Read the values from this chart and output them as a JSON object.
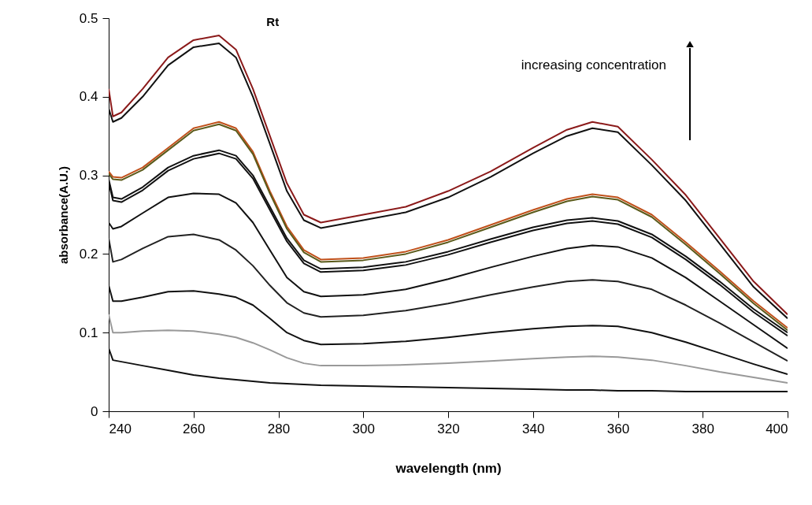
{
  "chart_data": {
    "type": "line",
    "title": "Rt",
    "xlabel": "wavelength (nm)",
    "ylabel": "absorbance(A.U.)",
    "annotations": [
      "increasing concentration"
    ],
    "x": [
      240,
      241,
      243,
      248,
      254,
      260,
      266,
      270,
      274,
      278,
      282,
      286,
      290,
      300,
      310,
      320,
      330,
      340,
      348,
      354,
      360,
      368,
      376,
      384,
      392,
      400
    ],
    "xlim": [
      240,
      400
    ],
    "xticks": [
      240,
      260,
      280,
      300,
      320,
      340,
      360,
      380,
      400
    ],
    "ylim": [
      0,
      0.5
    ],
    "yticks": [
      0,
      0.1,
      0.2,
      0.3,
      0.4,
      0.5
    ],
    "grid": false,
    "legend": false,
    "marker": "none",
    "line_style": "solid",
    "series": [
      {
        "color": "#8b1a1a",
        "values": [
          0.41,
          0.375,
          0.38,
          0.41,
          0.45,
          0.472,
          0.478,
          0.46,
          0.41,
          0.35,
          0.29,
          0.25,
          0.24,
          0.25,
          0.26,
          0.28,
          0.305,
          0.335,
          0.358,
          0.368,
          0.362,
          0.32,
          0.275,
          0.22,
          0.165,
          0.123
        ]
      },
      {
        "color": "#111111",
        "values": [
          0.385,
          0.368,
          0.373,
          0.4,
          0.44,
          0.463,
          0.468,
          0.45,
          0.4,
          0.34,
          0.28,
          0.243,
          0.233,
          0.243,
          0.253,
          0.272,
          0.298,
          0.328,
          0.35,
          0.36,
          0.355,
          0.313,
          0.268,
          0.213,
          0.158,
          0.118
        ]
      },
      {
        "color": "#c0501a",
        "values": [
          0.305,
          0.298,
          0.297,
          0.31,
          0.335,
          0.36,
          0.368,
          0.36,
          0.33,
          0.28,
          0.235,
          0.205,
          0.193,
          0.195,
          0.203,
          0.218,
          0.237,
          0.256,
          0.27,
          0.276,
          0.272,
          0.25,
          0.215,
          0.178,
          0.14,
          0.106
        ]
      },
      {
        "color": "#5a5a1a",
        "values": [
          0.302,
          0.295,
          0.294,
          0.307,
          0.332,
          0.357,
          0.365,
          0.357,
          0.327,
          0.277,
          0.232,
          0.202,
          0.19,
          0.192,
          0.2,
          0.215,
          0.234,
          0.253,
          0.267,
          0.273,
          0.269,
          0.247,
          0.212,
          0.175,
          0.137,
          0.103
        ]
      },
      {
        "color": "#111111",
        "values": [
          0.295,
          0.272,
          0.27,
          0.285,
          0.31,
          0.325,
          0.332,
          0.325,
          0.3,
          0.26,
          0.22,
          0.192,
          0.181,
          0.183,
          0.19,
          0.203,
          0.219,
          0.234,
          0.243,
          0.246,
          0.242,
          0.225,
          0.197,
          0.165,
          0.13,
          0.1
        ]
      },
      {
        "color": "#111111",
        "values": [
          0.291,
          0.268,
          0.266,
          0.281,
          0.306,
          0.321,
          0.328,
          0.321,
          0.296,
          0.256,
          0.216,
          0.188,
          0.177,
          0.179,
          0.186,
          0.199,
          0.215,
          0.23,
          0.239,
          0.242,
          0.238,
          0.221,
          0.193,
          0.161,
          0.126,
          0.096
        ]
      },
      {
        "color": "#111111",
        "values": [
          0.24,
          0.232,
          0.235,
          0.252,
          0.272,
          0.277,
          0.276,
          0.265,
          0.24,
          0.205,
          0.17,
          0.152,
          0.146,
          0.148,
          0.155,
          0.168,
          0.183,
          0.197,
          0.207,
          0.211,
          0.209,
          0.195,
          0.17,
          0.14,
          0.11,
          0.08
        ]
      },
      {
        "color": "#222222",
        "values": [
          0.22,
          0.19,
          0.193,
          0.207,
          0.222,
          0.225,
          0.218,
          0.205,
          0.185,
          0.16,
          0.138,
          0.125,
          0.12,
          0.122,
          0.128,
          0.137,
          0.148,
          0.158,
          0.165,
          0.167,
          0.165,
          0.155,
          0.135,
          0.112,
          0.088,
          0.064
        ]
      },
      {
        "color": "#111111",
        "values": [
          0.16,
          0.14,
          0.14,
          0.145,
          0.152,
          0.153,
          0.149,
          0.145,
          0.135,
          0.118,
          0.1,
          0.09,
          0.085,
          0.086,
          0.089,
          0.094,
          0.1,
          0.105,
          0.108,
          0.109,
          0.108,
          0.1,
          0.088,
          0.074,
          0.06,
          0.047
        ]
      },
      {
        "color": "#999999",
        "values": [
          0.123,
          0.1,
          0.1,
          0.102,
          0.103,
          0.102,
          0.098,
          0.094,
          0.087,
          0.078,
          0.068,
          0.061,
          0.058,
          0.058,
          0.059,
          0.061,
          0.064,
          0.067,
          0.069,
          0.07,
          0.069,
          0.065,
          0.058,
          0.05,
          0.043,
          0.036
        ]
      },
      {
        "color": "#111111",
        "values": [
          0.08,
          0.065,
          0.063,
          0.058,
          0.052,
          0.046,
          0.042,
          0.04,
          0.038,
          0.036,
          0.035,
          0.034,
          0.033,
          0.032,
          0.031,
          0.03,
          0.029,
          0.028,
          0.027,
          0.027,
          0.026,
          0.026,
          0.025,
          0.025,
          0.025,
          0.025
        ]
      }
    ]
  }
}
